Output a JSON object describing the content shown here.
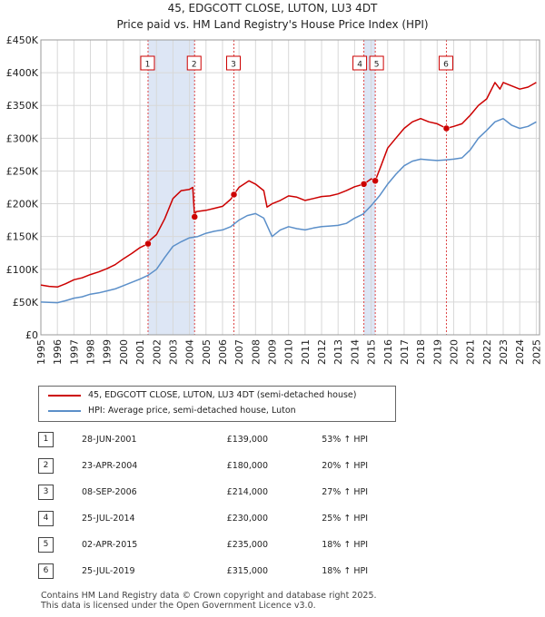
{
  "title_line1": "45, EDGCOTT CLOSE, LUTON, LU3 4DT",
  "title_line2": "Price paid vs. HM Land Registry's House Price Index (HPI)",
  "legend": {
    "property_label": "45, EDGCOTT CLOSE, LUTON, LU3 4DT (semi-detached house)",
    "hpi_label": "HPI: Average price, semi-detached house, Luton"
  },
  "sales": [
    {
      "num": "1",
      "date": "28-JUN-2001",
      "price": "£139,000",
      "hpi": "53% ↑ HPI"
    },
    {
      "num": "2",
      "date": "23-APR-2004",
      "price": "£180,000",
      "hpi": "20% ↑ HPI"
    },
    {
      "num": "3",
      "date": "08-SEP-2006",
      "price": "£214,000",
      "hpi": "27% ↑ HPI"
    },
    {
      "num": "4",
      "date": "25-JUL-2014",
      "price": "£230,000",
      "hpi": "25% ↑ HPI"
    },
    {
      "num": "5",
      "date": "02-APR-2015",
      "price": "£235,000",
      "hpi": "18% ↑ HPI"
    },
    {
      "num": "6",
      "date": "25-JUL-2019",
      "price": "£315,000",
      "hpi": "18% ↑ HPI"
    }
  ],
  "footer_line1": "Contains HM Land Registry data © Crown copyright and database right 2025.",
  "footer_line2": "This data is licensed under the Open Government Licence v3.0.",
  "chart_data": {
    "type": "line",
    "title": "45, EDGCOTT CLOSE, LUTON, LU3 4DT",
    "subtitle": "Price paid vs. HM Land Registry's House Price Index (HPI)",
    "xlabel": "",
    "ylabel": "",
    "xlim": [
      1995,
      2025.2
    ],
    "ylim": [
      0,
      450000
    ],
    "grid": true,
    "legend_position": "below",
    "colors": {
      "property": "#cc0000",
      "hpi": "#5b8fc9",
      "band": "#dde6f5",
      "vline": "#dd4444"
    },
    "x_ticks": [
      "1995",
      "1996",
      "1997",
      "1998",
      "1999",
      "2000",
      "2001",
      "2002",
      "2003",
      "2004",
      "2005",
      "2006",
      "2007",
      "2008",
      "2009",
      "2010",
      "2011",
      "2012",
      "2013",
      "2014",
      "2015",
      "2016",
      "2017",
      "2018",
      "2019",
      "2020",
      "2021",
      "2022",
      "2023",
      "2024",
      "2025"
    ],
    "y_ticks": [
      {
        "value": 0,
        "label": "£0"
      },
      {
        "value": 50000,
        "label": "£50K"
      },
      {
        "value": 100000,
        "label": "£100K"
      },
      {
        "value": 150000,
        "label": "£150K"
      },
      {
        "value": 200000,
        "label": "£200K"
      },
      {
        "value": 250000,
        "label": "£250K"
      },
      {
        "value": 300000,
        "label": "£300K"
      },
      {
        "value": 350000,
        "label": "£350K"
      },
      {
        "value": 400000,
        "label": "£400K"
      },
      {
        "value": 450000,
        "label": "£450K"
      }
    ],
    "bands": [
      [
        2001.49,
        2004.31
      ],
      [
        2014.56,
        2015.25
      ]
    ],
    "sales": [
      {
        "num": "1",
        "x": 2001.49,
        "y": 139000
      },
      {
        "num": "2",
        "x": 2004.31,
        "y": 180000
      },
      {
        "num": "3",
        "x": 2006.69,
        "y": 214000
      },
      {
        "num": "4",
        "x": 2014.56,
        "y": 230000
      },
      {
        "num": "5",
        "x": 2015.25,
        "y": 235000
      },
      {
        "num": "6",
        "x": 2019.56,
        "y": 315000
      }
    ],
    "series": [
      {
        "name": "45, EDGCOTT CLOSE, LUTON, LU3 4DT (semi-detached house)",
        "color": "#cc0000",
        "x": [
          1995,
          1995.5,
          1996,
          1996.5,
          1997,
          1997.5,
          1998,
          1998.5,
          1999,
          1999.5,
          2000,
          2000.5,
          2001,
          2001.49,
          2001.5,
          2002,
          2002.5,
          2003,
          2003.5,
          2004,
          2004.2,
          2004.31,
          2004.4,
          2005,
          2005.5,
          2006,
          2006.5,
          2006.69,
          2007,
          2007.3,
          2007.6,
          2008,
          2008.5,
          2008.7,
          2009,
          2009.5,
          2010,
          2010.5,
          2011,
          2011.5,
          2012,
          2012.5,
          2013,
          2013.5,
          2014,
          2014.56,
          2015,
          2015.25,
          2015.6,
          2016,
          2016.5,
          2017,
          2017.5,
          2018,
          2018.5,
          2019,
          2019.56,
          2020,
          2020.5,
          2021,
          2021.5,
          2022,
          2022.5,
          2022.8,
          2023,
          2023.5,
          2024,
          2024.5,
          2025
        ],
        "y": [
          76000,
          74000,
          73000,
          78000,
          84000,
          87000,
          92000,
          96000,
          101000,
          107000,
          116000,
          124000,
          133000,
          139000,
          142000,
          153000,
          177000,
          208000,
          220000,
          222000,
          225000,
          180000,
          188000,
          190000,
          193000,
          196000,
          207000,
          214000,
          225000,
          230000,
          235000,
          230000,
          220000,
          195000,
          200000,
          205000,
          212000,
          210000,
          205000,
          208000,
          211000,
          212000,
          215000,
          220000,
          226000,
          230000,
          238000,
          235000,
          258000,
          285000,
          300000,
          315000,
          325000,
          330000,
          325000,
          322000,
          315000,
          318000,
          322000,
          335000,
          350000,
          360000,
          385000,
          375000,
          385000,
          380000,
          375000,
          378000,
          385000
        ]
      },
      {
        "name": "HPI: Average price, semi-detached house, Luton",
        "color": "#5b8fc9",
        "x": [
          1995,
          1995.5,
          1996,
          1996.5,
          1997,
          1997.5,
          1998,
          1998.5,
          1999,
          1999.5,
          2000,
          2000.5,
          2001,
          2001.5,
          2002,
          2002.5,
          2003,
          2003.5,
          2004,
          2004.5,
          2005,
          2005.5,
          2006,
          2006.5,
          2007,
          2007.5,
          2008,
          2008.5,
          2009,
          2009.5,
          2010,
          2010.5,
          2011,
          2011.5,
          2012,
          2012.5,
          2013,
          2013.5,
          2014,
          2014.5,
          2015,
          2015.5,
          2016,
          2016.5,
          2017,
          2017.5,
          2018,
          2018.5,
          2019,
          2019.5,
          2020,
          2020.5,
          2021,
          2021.5,
          2022,
          2022.5,
          2023,
          2023.5,
          2024,
          2024.5,
          2025
        ],
        "y": [
          50000,
          49500,
          49000,
          52000,
          56000,
          58000,
          62000,
          64000,
          67000,
          70000,
          75000,
          80000,
          85000,
          91000,
          100000,
          118000,
          135000,
          142000,
          148000,
          150000,
          155000,
          158000,
          160000,
          165000,
          175000,
          182000,
          185000,
          178000,
          150000,
          160000,
          165000,
          162000,
          160000,
          163000,
          165000,
          166000,
          167000,
          170000,
          178000,
          184000,
          197000,
          212000,
          230000,
          245000,
          258000,
          265000,
          268000,
          267000,
          266000,
          267000,
          268000,
          270000,
          282000,
          300000,
          312000,
          325000,
          330000,
          320000,
          315000,
          318000,
          325000
        ]
      }
    ]
  }
}
